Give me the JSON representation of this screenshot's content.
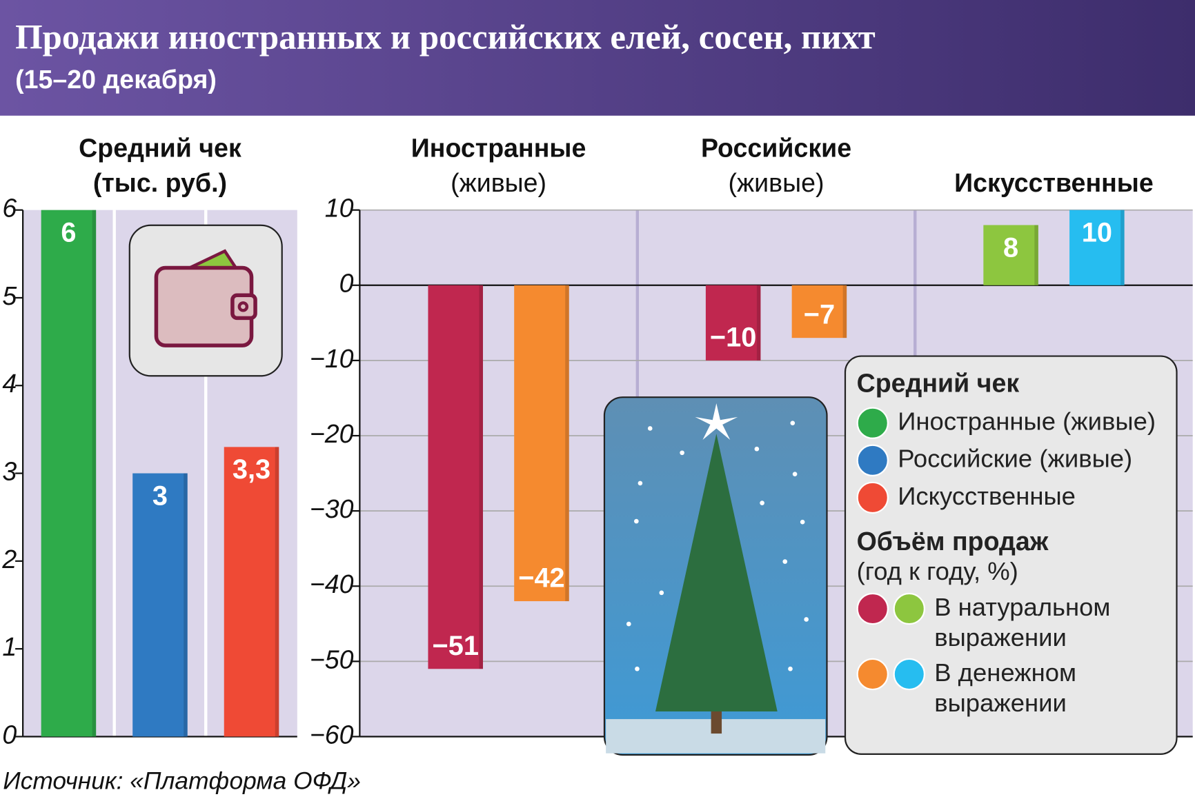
{
  "header": {
    "title": "Продажи иностранных и российских елей, сосен, пихт",
    "subtitle": "(15–20 декабря)"
  },
  "source": "Источник: «Платформа ОФД»",
  "chart_data": [
    {
      "type": "bar",
      "title": "Средний чек",
      "subtitle": "(тыс. руб.)",
      "legend_title": "Средний чек",
      "categories": [
        "Иностранные (живые)",
        "Российские (живые)",
        "Искусственные"
      ],
      "values": [
        6,
        3,
        3.3
      ],
      "value_labels": [
        "6",
        "3",
        "3,3"
      ],
      "colors": [
        "#2eab4a",
        "#2f7ac2",
        "#ef4a35"
      ],
      "ylim": [
        0,
        6
      ],
      "yticks": [
        0,
        1,
        2,
        3,
        4,
        5,
        6
      ],
      "grid": false
    },
    {
      "type": "grouped-bar",
      "legend_title": "Объём продаж",
      "legend_subtitle": "(год к году, %)",
      "categories": [
        "Иностранные (живые)",
        "Российские (живые)",
        "Искусственные"
      ],
      "series": [
        {
          "name": "В натуральном выражении",
          "colors": [
            "#c0274f",
            "#c0274f",
            "#8dc63f"
          ],
          "values": [
            -51,
            -10,
            8
          ],
          "value_labels": [
            "−51",
            "−10",
            "8"
          ]
        },
        {
          "name": "В денежном выражении",
          "colors": [
            "#f58a2f",
            "#f58a2f",
            "#26bdf0"
          ],
          "values": [
            -42,
            -7,
            10
          ],
          "value_labels": [
            "−42",
            "−7",
            "10"
          ]
        }
      ],
      "ylim": [
        -60,
        10
      ],
      "yticks": [
        {
          "value": -60,
          "label": "−60"
        },
        {
          "value": -50,
          "label": "−50"
        },
        {
          "value": -40,
          "label": "−40"
        },
        {
          "value": -30,
          "label": "−30"
        },
        {
          "value": -20,
          "label": "−20"
        },
        {
          "value": -10,
          "label": "−10"
        },
        0,
        10
      ],
      "grid": true
    }
  ]
}
